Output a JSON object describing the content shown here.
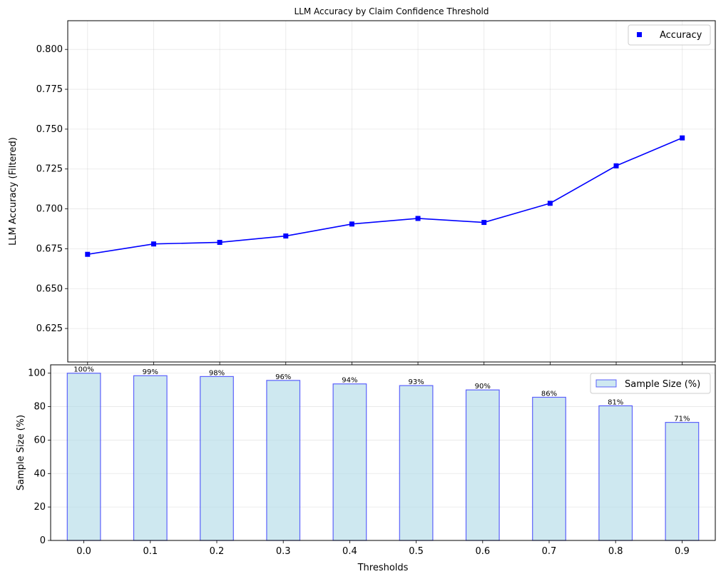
{
  "chart_data": [
    {
      "type": "line",
      "title": "LLM Accuracy by Claim Confidence Threshold",
      "xlabel": "",
      "ylabel": "LLM Accuracy (Filtered)",
      "x": [
        0.0,
        0.1,
        0.2,
        0.3,
        0.4,
        0.5,
        0.6,
        0.7,
        0.8,
        0.9
      ],
      "xlim": [
        -0.03,
        0.95
      ],
      "ylim": [
        0.604,
        0.818
      ],
      "yticks": [
        0.625,
        0.65,
        0.675,
        0.7,
        0.725,
        0.75,
        0.775,
        0.8
      ],
      "ytick_labels": [
        "0.625",
        "0.650",
        "0.675",
        "0.700",
        "0.725",
        "0.750",
        "0.775",
        "0.800"
      ],
      "series": [
        {
          "name": "Accuracy",
          "values": [
            0.6715,
            0.678,
            0.679,
            0.683,
            0.6905,
            0.694,
            0.6915,
            0.7035,
            0.727,
            0.7445
          ],
          "color": "#0000ff",
          "marker": "square"
        }
      ],
      "grid": true,
      "legend": "top-right"
    },
    {
      "type": "bar",
      "title": "",
      "xlabel": "Thresholds",
      "ylabel": "Sample Size (%)",
      "categories": [
        "0.0",
        "0.1",
        "0.2",
        "0.3",
        "0.4",
        "0.5",
        "0.6",
        "0.7",
        "0.8",
        "0.9"
      ],
      "ylim": [
        0,
        105
      ],
      "yticks": [
        0,
        20,
        40,
        60,
        80,
        100
      ],
      "ytick_labels": [
        "0",
        "20",
        "40",
        "60",
        "80",
        "100"
      ],
      "series": [
        {
          "name": "Sample Size (%)",
          "values": [
            100,
            98.5,
            98,
            95.7,
            93.6,
            92.6,
            90,
            85.6,
            80.5,
            70.6
          ],
          "data_labels": [
            "100%",
            "99%",
            "98%",
            "96%",
            "94%",
            "93%",
            "90%",
            "86%",
            "81%",
            "71%"
          ],
          "fill": "#add8e6",
          "edge": "#0000ff"
        }
      ],
      "grid": true,
      "legend": "top-right"
    }
  ]
}
